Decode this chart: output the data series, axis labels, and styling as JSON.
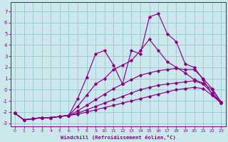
{
  "xlabel": "Windchill (Refroidissement éolien,°C)",
  "ylabel": "",
  "xlim": [
    -0.5,
    23.5
  ],
  "ylim": [
    -3.3,
    7.8
  ],
  "xticks": [
    0,
    1,
    2,
    3,
    4,
    5,
    6,
    7,
    8,
    9,
    10,
    11,
    12,
    13,
    14,
    15,
    16,
    17,
    18,
    19,
    20,
    21,
    22,
    23
  ],
  "yticks": [
    -3,
    -2,
    -1,
    0,
    1,
    2,
    3,
    4,
    5,
    6,
    7
  ],
  "bg_color": "#cde8ec",
  "line_color": "#880088",
  "grid_color": "#9ecdd4",
  "series": [
    {
      "x": [
        0,
        1,
        2,
        3,
        4,
        5,
        6,
        7,
        8,
        9,
        10,
        11,
        12,
        13,
        14,
        15,
        16,
        17,
        18,
        19,
        20,
        21,
        22,
        23
      ],
      "y": [
        -2.1,
        -2.7,
        -2.6,
        -2.5,
        -2.5,
        -2.4,
        -2.3,
        -2.2,
        -2.0,
        -1.8,
        -1.6,
        -1.4,
        -1.2,
        -1.0,
        -0.8,
        -0.6,
        -0.4,
        -0.2,
        0.0,
        0.1,
        0.2,
        0.1,
        -0.5,
        -1.2
      ]
    },
    {
      "x": [
        0,
        1,
        2,
        3,
        4,
        5,
        6,
        7,
        8,
        9,
        10,
        11,
        12,
        13,
        14,
        15,
        16,
        17,
        18,
        19,
        20,
        21,
        22,
        23
      ],
      "y": [
        -2.1,
        -2.7,
        -2.6,
        -2.5,
        -2.5,
        -2.4,
        -2.3,
        -2.1,
        -1.8,
        -1.5,
        -1.2,
        -0.9,
        -0.6,
        -0.3,
        0.0,
        0.2,
        0.4,
        0.5,
        0.6,
        0.7,
        0.8,
        0.5,
        -0.3,
        -1.1
      ]
    },
    {
      "x": [
        0,
        1,
        2,
        3,
        4,
        5,
        6,
        7,
        8,
        9,
        10,
        11,
        12,
        13,
        14,
        15,
        16,
        17,
        18,
        19,
        20,
        21,
        22,
        23
      ],
      "y": [
        -2.1,
        -2.7,
        -2.6,
        -2.5,
        -2.5,
        -2.4,
        -2.3,
        -1.9,
        -1.4,
        -0.9,
        -0.4,
        0.1,
        0.5,
        0.9,
        1.3,
        1.5,
        1.7,
        1.8,
        1.9,
        1.8,
        1.8,
        1.0,
        0.1,
        -1.1
      ]
    },
    {
      "x": [
        0,
        1,
        2,
        3,
        4,
        5,
        6,
        7,
        8,
        9,
        10,
        11,
        12,
        13,
        14,
        15,
        16,
        17,
        18,
        19,
        20,
        21,
        22,
        23
      ],
      "y": [
        -2.1,
        -2.7,
        -2.6,
        -2.5,
        -2.5,
        -2.4,
        -2.3,
        -0.8,
        1.1,
        3.2,
        3.5,
        2.2,
        0.5,
        3.5,
        3.2,
        6.5,
        6.8,
        5.0,
        4.3,
        2.3,
        2.0,
        0.9,
        -0.4,
        -1.2
      ]
    },
    {
      "x": [
        0,
        1,
        2,
        3,
        4,
        5,
        6,
        7,
        8,
        9,
        10,
        11,
        12,
        13,
        14,
        15,
        16,
        17,
        18,
        19,
        20,
        21,
        22,
        23
      ],
      "y": [
        -2.1,
        -2.7,
        -2.6,
        -2.5,
        -2.5,
        -2.4,
        -2.3,
        -1.5,
        -0.5,
        0.5,
        1.0,
        1.8,
        2.2,
        2.6,
        3.5,
        4.5,
        3.5,
        2.5,
        2.0,
        1.5,
        0.9,
        0.6,
        0.0,
        -1.1
      ]
    }
  ]
}
